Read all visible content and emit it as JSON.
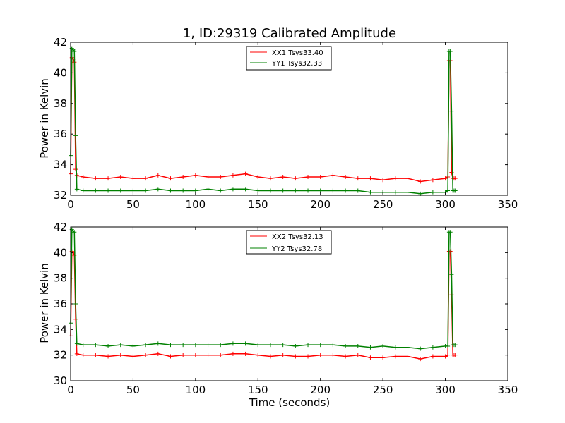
{
  "chart_data": [
    {
      "type": "line",
      "title": "1, ID:29319 Calibrated Amplitude",
      "xlabel": "",
      "ylabel": "Power in Kelvin",
      "xlim": [
        0,
        350
      ],
      "ylim": [
        32,
        42
      ],
      "xticks": [
        "0",
        "50",
        "100",
        "150",
        "200",
        "250",
        "300",
        "350"
      ],
      "yticks": [
        "32",
        "34",
        "36",
        "38",
        "40",
        "42"
      ],
      "grid": false,
      "legend_position": "top-center",
      "series": [
        {
          "name": "XX1 Tsys33.40",
          "color": "#ff0000",
          "marker": "+",
          "x": [
            0,
            1,
            2,
            3,
            4,
            5,
            10,
            20,
            30,
            40,
            50,
            60,
            70,
            80,
            90,
            100,
            110,
            120,
            130,
            140,
            150,
            160,
            170,
            180,
            190,
            200,
            210,
            220,
            230,
            240,
            250,
            260,
            270,
            280,
            290,
            300,
            302,
            303,
            304,
            305,
            306,
            307,
            308
          ],
          "y": [
            33.4,
            41.0,
            40.9,
            40.7,
            33.7,
            33.3,
            33.2,
            33.1,
            33.1,
            33.2,
            33.1,
            33.1,
            33.3,
            33.1,
            33.2,
            33.3,
            33.2,
            33.2,
            33.3,
            33.4,
            33.2,
            33.1,
            33.2,
            33.1,
            33.2,
            33.2,
            33.3,
            33.2,
            33.1,
            33.1,
            33.0,
            33.1,
            33.1,
            32.9,
            33.0,
            33.1,
            33.2,
            40.8,
            40.8,
            33.5,
            33.1,
            33.1,
            33.1
          ]
        },
        {
          "name": "YY1 Tsys32.33",
          "color": "#008000",
          "marker": "+",
          "x": [
            0,
            1,
            2,
            3,
            4,
            5,
            10,
            20,
            30,
            40,
            50,
            60,
            70,
            80,
            90,
            100,
            110,
            120,
            130,
            140,
            150,
            160,
            170,
            180,
            190,
            200,
            210,
            220,
            230,
            240,
            250,
            260,
            270,
            280,
            290,
            300,
            302,
            303,
            304,
            305,
            306,
            307,
            308
          ],
          "y": [
            34.6,
            41.6,
            41.5,
            41.4,
            35.9,
            32.4,
            32.3,
            32.3,
            32.3,
            32.3,
            32.3,
            32.3,
            32.4,
            32.3,
            32.3,
            32.3,
            32.4,
            32.3,
            32.4,
            32.4,
            32.3,
            32.3,
            32.3,
            32.3,
            32.3,
            32.3,
            32.3,
            32.3,
            32.3,
            32.2,
            32.2,
            32.2,
            32.2,
            32.1,
            32.2,
            32.2,
            32.3,
            41.4,
            41.4,
            37.5,
            32.3,
            32.3,
            32.3
          ]
        }
      ]
    },
    {
      "type": "line",
      "title": "",
      "xlabel": "Time (seconds)",
      "ylabel": "Power in Kelvin",
      "xlim": [
        0,
        350
      ],
      "ylim": [
        30,
        42
      ],
      "xticks": [
        "0",
        "50",
        "100",
        "150",
        "200",
        "250",
        "300",
        "350"
      ],
      "yticks": [
        "30",
        "32",
        "34",
        "36",
        "38",
        "40",
        "42"
      ],
      "grid": false,
      "legend_position": "top-center",
      "series": [
        {
          "name": "XX2 Tsys32.13",
          "color": "#ff0000",
          "marker": "+",
          "x": [
            0,
            1,
            2,
            3,
            4,
            5,
            10,
            20,
            30,
            40,
            50,
            60,
            70,
            80,
            90,
            100,
            110,
            120,
            130,
            140,
            150,
            160,
            170,
            180,
            190,
            200,
            210,
            220,
            230,
            240,
            250,
            260,
            270,
            280,
            290,
            300,
            302,
            303,
            304,
            305,
            306,
            307,
            308
          ],
          "y": [
            33.5,
            40.1,
            40.0,
            39.8,
            34.8,
            32.1,
            32.0,
            32.0,
            31.9,
            32.0,
            31.9,
            32.0,
            32.1,
            31.9,
            32.0,
            32.0,
            32.0,
            32.0,
            32.1,
            32.1,
            32.0,
            31.9,
            32.0,
            31.9,
            31.9,
            32.0,
            32.0,
            31.9,
            32.0,
            31.8,
            31.8,
            31.9,
            31.9,
            31.7,
            31.9,
            31.9,
            32.0,
            40.1,
            40.1,
            36.7,
            32.0,
            32.0,
            32.0
          ]
        },
        {
          "name": "YY2 Tsys32.78",
          "color": "#008000",
          "marker": "+",
          "x": [
            0,
            1,
            2,
            3,
            4,
            5,
            10,
            20,
            30,
            40,
            50,
            60,
            70,
            80,
            90,
            100,
            110,
            120,
            130,
            140,
            150,
            160,
            170,
            180,
            190,
            200,
            210,
            220,
            230,
            240,
            250,
            260,
            270,
            280,
            290,
            300,
            302,
            303,
            304,
            305,
            306,
            307,
            308
          ],
          "y": [
            34.5,
            41.8,
            41.7,
            41.6,
            36.0,
            32.9,
            32.8,
            32.8,
            32.7,
            32.8,
            32.7,
            32.8,
            32.9,
            32.8,
            32.8,
            32.8,
            32.8,
            32.8,
            32.9,
            32.9,
            32.8,
            32.8,
            32.8,
            32.7,
            32.8,
            32.8,
            32.8,
            32.7,
            32.7,
            32.6,
            32.7,
            32.6,
            32.6,
            32.5,
            32.6,
            32.7,
            32.7,
            41.6,
            41.6,
            38.3,
            32.8,
            32.8,
            32.8
          ]
        }
      ]
    }
  ]
}
